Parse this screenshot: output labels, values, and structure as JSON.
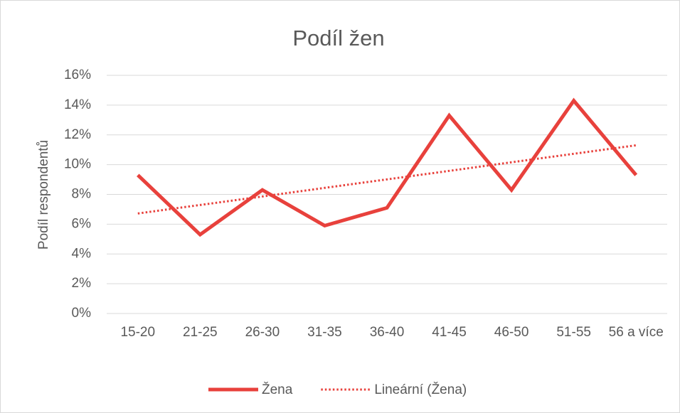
{
  "chart_data": {
    "type": "line",
    "title": "Podíl žen",
    "y_label": "Podíl respondentů",
    "categories": [
      "15-20",
      "21-25",
      "26-30",
      "31-35",
      "36-40",
      "41-45",
      "46-50",
      "51-55",
      "56 a více"
    ],
    "series": [
      {
        "name": "Žena",
        "color": "#e8413c",
        "line_style": "solid",
        "values": [
          9.3,
          5.3,
          8.3,
          5.9,
          7.1,
          13.3,
          8.3,
          14.3,
          9.3
        ]
      },
      {
        "name": "Lineární (Žena)",
        "color": "#e8413c",
        "line_style": "dotted",
        "values": [
          6.72,
          7.29,
          7.86,
          8.44,
          9.01,
          9.58,
          10.16,
          10.73,
          11.3
        ]
      }
    ],
    "ylim": [
      0,
      16
    ],
    "yticks": [
      {
        "value": 0,
        "label": "0%"
      },
      {
        "value": 2,
        "label": "2%"
      },
      {
        "value": 4,
        "label": "4%"
      },
      {
        "value": 6,
        "label": "6%"
      },
      {
        "value": 8,
        "label": "8%"
      },
      {
        "value": 10,
        "label": "10%"
      },
      {
        "value": 12,
        "label": "12%"
      },
      {
        "value": 14,
        "label": "14%"
      },
      {
        "value": 16,
        "label": "16%"
      }
    ],
    "grid": true,
    "legend": "bottom"
  }
}
